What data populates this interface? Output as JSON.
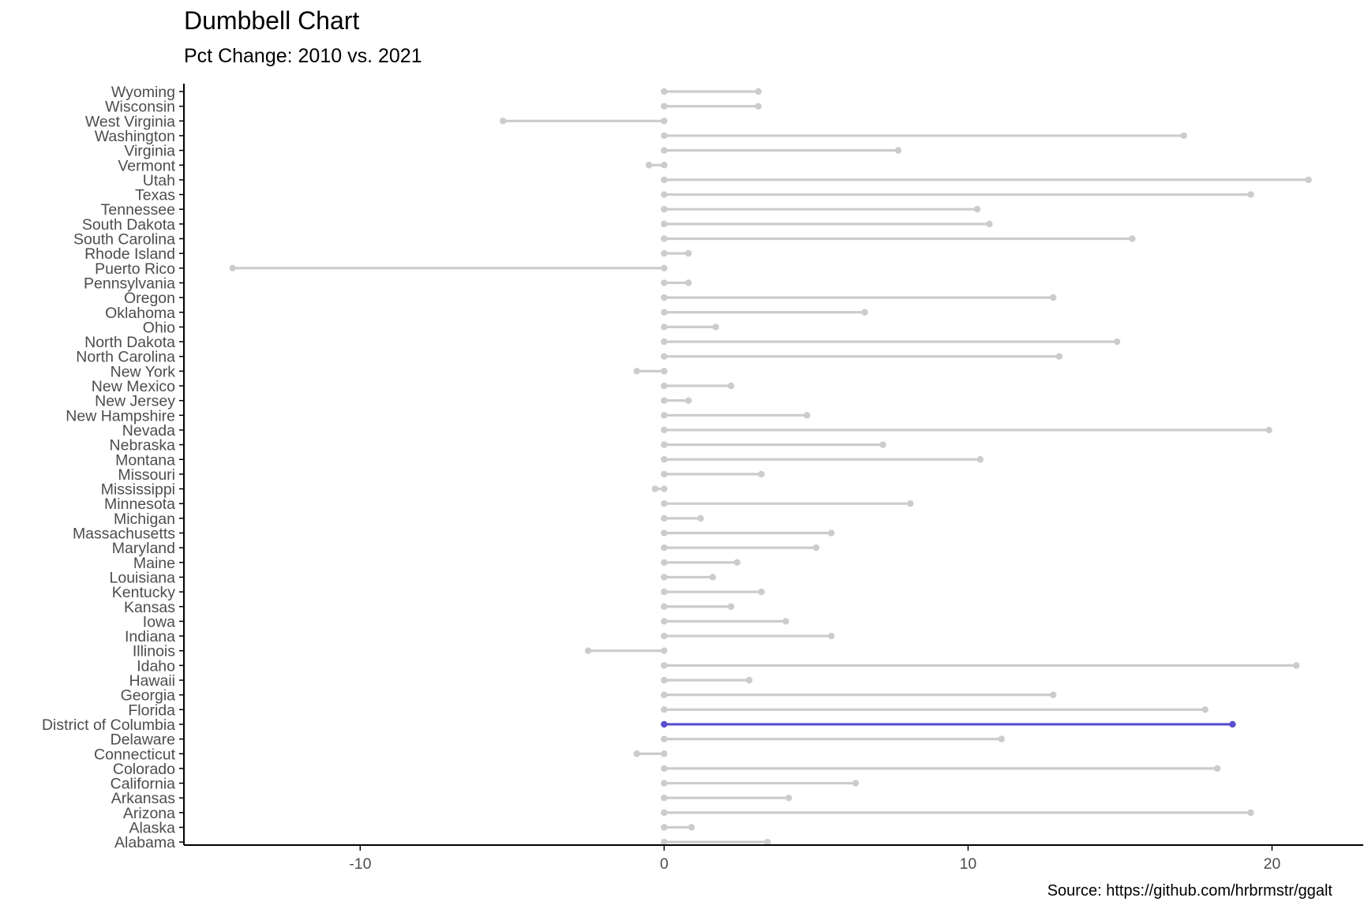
{
  "chart_data": {
    "type": "dumbbell",
    "title": "Dumbbell Chart",
    "subtitle": "Pct Change: 2010 vs. 2021",
    "caption": "Source: https://github.com/hrbrmstr/ggalt",
    "xlabel": "",
    "ylabel": "",
    "xlim": [
      -15.8,
      23
    ],
    "xticks": [
      -10,
      0,
      10,
      20
    ],
    "grid": false,
    "colors": {
      "default": "#cccccc",
      "highlight": "#5a4fcf",
      "axis": "#000000",
      "label": "#4d4d4d"
    },
    "highlight": "District of Columbia",
    "series": [
      {
        "x_start_2010": 0
      }
    ],
    "categories": [
      "Alabama",
      "Alaska",
      "Arizona",
      "Arkansas",
      "California",
      "Colorado",
      "Connecticut",
      "Delaware",
      "District of Columbia",
      "Florida",
      "Georgia",
      "Hawaii",
      "Idaho",
      "Illinois",
      "Indiana",
      "Iowa",
      "Kansas",
      "Kentucky",
      "Louisiana",
      "Maine",
      "Maryland",
      "Massachusetts",
      "Michigan",
      "Minnesota",
      "Mississippi",
      "Missouri",
      "Montana",
      "Nebraska",
      "Nevada",
      "New Hampshire",
      "New Jersey",
      "New Mexico",
      "New York",
      "North Carolina",
      "North Dakota",
      "Ohio",
      "Oklahoma",
      "Oregon",
      "Pennsylvania",
      "Puerto Rico",
      "Rhode Island",
      "South Carolina",
      "South Dakota",
      "Tennessee",
      "Texas",
      "Utah",
      "Vermont",
      "Virginia",
      "Washington",
      "West Virginia",
      "Wisconsin",
      "Wyoming"
    ],
    "values_2021": [
      3.4,
      0.9,
      19.3,
      4.1,
      6.3,
      18.2,
      -0.9,
      11.1,
      18.7,
      17.8,
      12.8,
      2.8,
      20.8,
      -2.5,
      5.5,
      4.0,
      2.2,
      3.2,
      1.6,
      2.4,
      5.0,
      5.5,
      1.2,
      8.1,
      -0.3,
      3.2,
      10.4,
      7.2,
      19.9,
      4.7,
      0.8,
      2.2,
      -0.9,
      13.0,
      14.9,
      1.7,
      6.6,
      12.8,
      0.8,
      -14.2,
      0.8,
      15.4,
      10.7,
      10.3,
      19.3,
      21.2,
      -0.5,
      7.7,
      17.1,
      -5.3,
      3.1,
      3.1
    ]
  }
}
